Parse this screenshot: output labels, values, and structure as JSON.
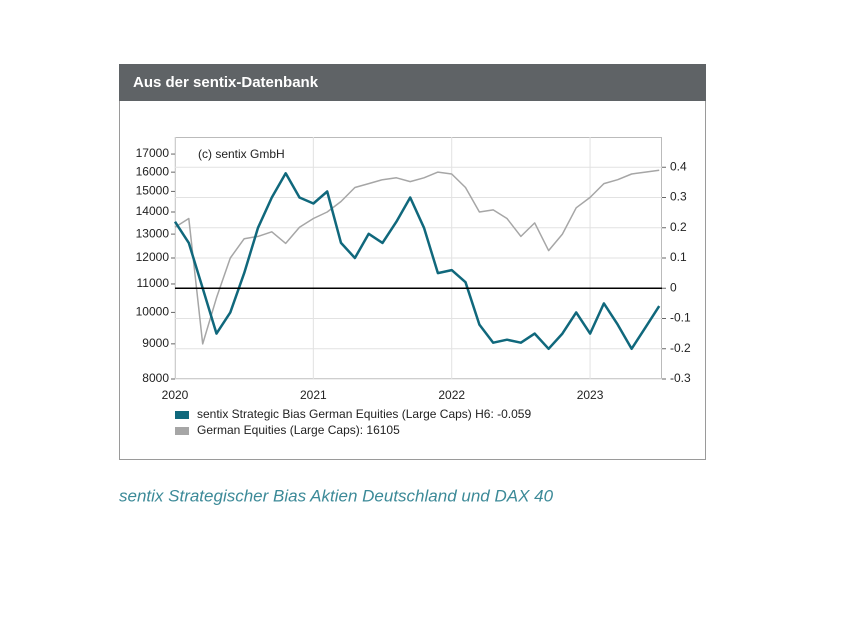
{
  "header": {
    "title": "Aus der sentix-Datenbank"
  },
  "chart_data": {
    "type": "line",
    "annotation": "(c) sentix GmbH",
    "x": [
      2020.0,
      2020.1,
      2020.2,
      2020.3,
      2020.4,
      2020.5,
      2020.6,
      2020.7,
      2020.8,
      2020.9,
      2021.0,
      2021.1,
      2021.2,
      2021.3,
      2021.4,
      2021.5,
      2021.6,
      2021.7,
      2021.8,
      2021.9,
      2022.0,
      2022.1,
      2022.2,
      2022.3,
      2022.4,
      2022.5,
      2022.6,
      2022.7,
      2022.8,
      2022.9,
      2023.0,
      2023.1,
      2023.2,
      2023.3,
      2023.4,
      2023.5
    ],
    "xlim": [
      2020,
      2023.52
    ],
    "xticks": [
      2020,
      2021,
      2022,
      2023
    ],
    "ylim": [
      8000,
      18000
    ],
    "yticks": [
      8000,
      9000,
      10000,
      11000,
      12000,
      13000,
      14000,
      15000,
      16000,
      17000
    ],
    "log_y": true,
    "y2lim": [
      -0.3,
      0.5
    ],
    "y2ticks": [
      -0.3,
      -0.2,
      -0.1,
      0,
      0.1,
      0.2,
      0.3,
      0.4
    ],
    "reference_line": 0,
    "grid": true,
    "legend": "bottom-left",
    "series": [
      {
        "name": "sentix Strategic Bias German Equities (Large Caps) H6: -0.059",
        "color": "#10687c",
        "axis": "y2",
        "values": [
          0.22,
          0.15,
          0.0,
          -0.15,
          -0.08,
          0.05,
          0.2,
          0.3,
          0.38,
          0.3,
          0.28,
          0.32,
          0.15,
          0.1,
          0.18,
          0.15,
          0.22,
          0.3,
          0.2,
          0.05,
          0.06,
          0.02,
          -0.12,
          -0.18,
          -0.17,
          -0.18,
          -0.15,
          -0.2,
          -0.15,
          -0.08,
          -0.15,
          -0.05,
          -0.12,
          -0.2,
          -0.13,
          -0.059
        ]
      },
      {
        "name": "German Equities (Large Caps): 16105",
        "color": "#a6a6a6",
        "values": [
          13300,
          13700,
          9000,
          10500,
          12000,
          12800,
          12900,
          13100,
          12600,
          13300,
          13700,
          14000,
          14500,
          15200,
          15400,
          15600,
          15700,
          15500,
          15700,
          16000,
          15900,
          15200,
          14000,
          14100,
          13700,
          12900,
          13500,
          12300,
          13000,
          14200,
          14700,
          15400,
          15600,
          15900,
          16000,
          16105
        ]
      }
    ]
  },
  "caption": "sentix Strategischer Bias Aktien Deutschland und DAX 40"
}
